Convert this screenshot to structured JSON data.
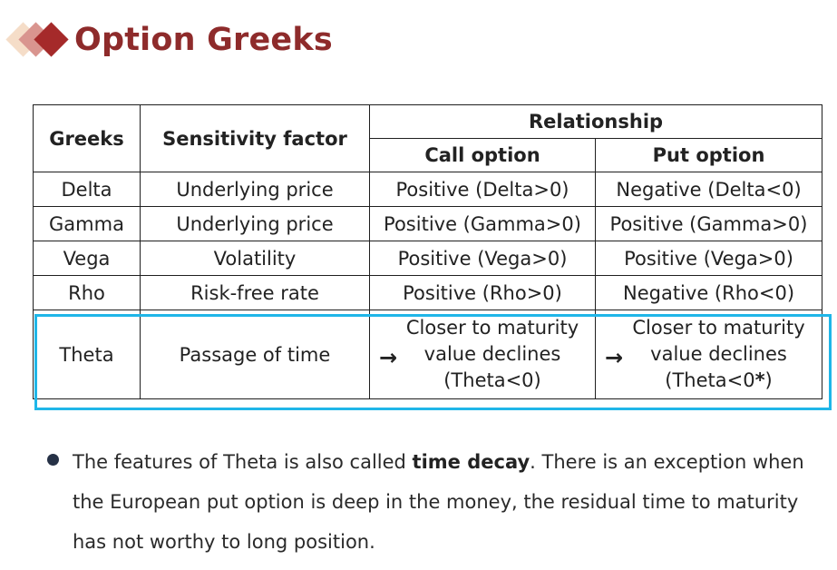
{
  "title": "Option Greeks",
  "table": {
    "headers": {
      "greeks": "Greeks",
      "sensitivity": "Sensitivity factor",
      "relationship": "Relationship",
      "call": "Call option",
      "put": "Put option"
    },
    "rows": [
      {
        "greek": "Delta",
        "factor": "Underlying price",
        "call": "Positive (Delta>0)",
        "put": "Negative (Delta<0)"
      },
      {
        "greek": "Gamma",
        "factor": "Underlying price",
        "call": "Positive (Gamma>0)",
        "put": "Positive (Gamma>0)"
      },
      {
        "greek": "Vega",
        "factor": "Volatility",
        "call": "Positive (Vega>0)",
        "put": "Positive (Vega>0)"
      },
      {
        "greek": "Rho",
        "factor": "Risk-free rate",
        "call": "Positive (Rho>0)",
        "put": "Negative (Rho<0)"
      }
    ],
    "theta": {
      "greek": "Theta",
      "factor": "Passage of time",
      "arrow": "→",
      "call": {
        "line1": "Closer to maturity",
        "line2": "value declines",
        "line3": "(Theta<0)"
      },
      "put": {
        "line1": "Closer to maturity",
        "line2": "value declines",
        "line3_prefix": "(Theta<0",
        "line3_star": "*",
        "line3_suffix": ")"
      }
    }
  },
  "highlight_color": "#1fb6e8",
  "title_color": "#8e2b2b",
  "bullet": {
    "part1": "The features of Theta is also called ",
    "bold": "time decay",
    "part2": ". There is an exception when the European put option is deep in the money, the residual time to maturity has not worthy to long position."
  }
}
